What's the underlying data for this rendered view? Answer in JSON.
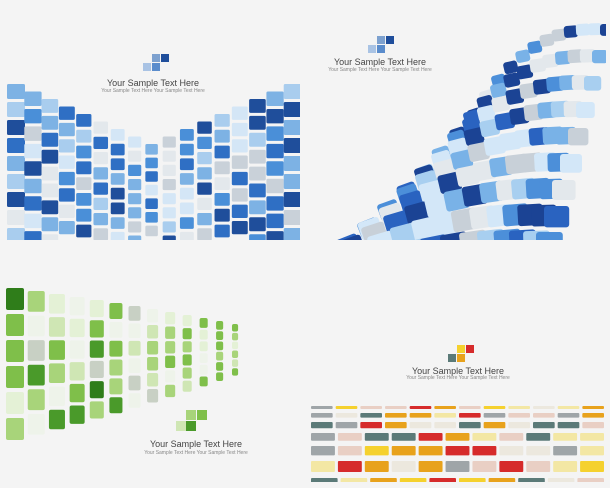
{
  "panels": [
    {
      "heading": "Your Sample Text Here",
      "subtext": "Your Sample Text Here  Your Sample Text Here",
      "theme": "blue",
      "colors": [
        "#1f4e9b",
        "#2f6fc4",
        "#4a8fd8",
        "#7db2e4",
        "#a9cdee",
        "#d4e6f6",
        "#c9d1d9",
        "#e3e8ec"
      ]
    },
    {
      "heading": "Your Sample Text Here",
      "subtext": "Your Sample Text Here  Your Sample Text Here",
      "theme": "blue-wave",
      "colors": [
        "#1b4394",
        "#2a63c0",
        "#4c8fd9",
        "#79b2e7",
        "#a8cff0",
        "#d3e7f8",
        "#c8d0d8",
        "#e3e8ec"
      ]
    },
    {
      "heading": "Your Sample Text Here",
      "subtext": "Your Sample Text Here  Your Sample Text Here",
      "theme": "green",
      "colors": [
        "#2f7d1a",
        "#4a9a2a",
        "#7fbf4a",
        "#a8d47a",
        "#cfe6b4",
        "#e4f1d6",
        "#c8d0c4",
        "#eef3ea"
      ]
    },
    {
      "heading": "Your Sample Text Here",
      "subtext": "Your Sample Text Here  Your Sample Text Here",
      "theme": "warm",
      "colors": [
        "#d62b2b",
        "#e8a21c",
        "#f5d12e",
        "#f3e7a4",
        "#9fa5a8",
        "#5b7a78",
        "#e9cfc4",
        "#ece8de"
      ]
    }
  ]
}
